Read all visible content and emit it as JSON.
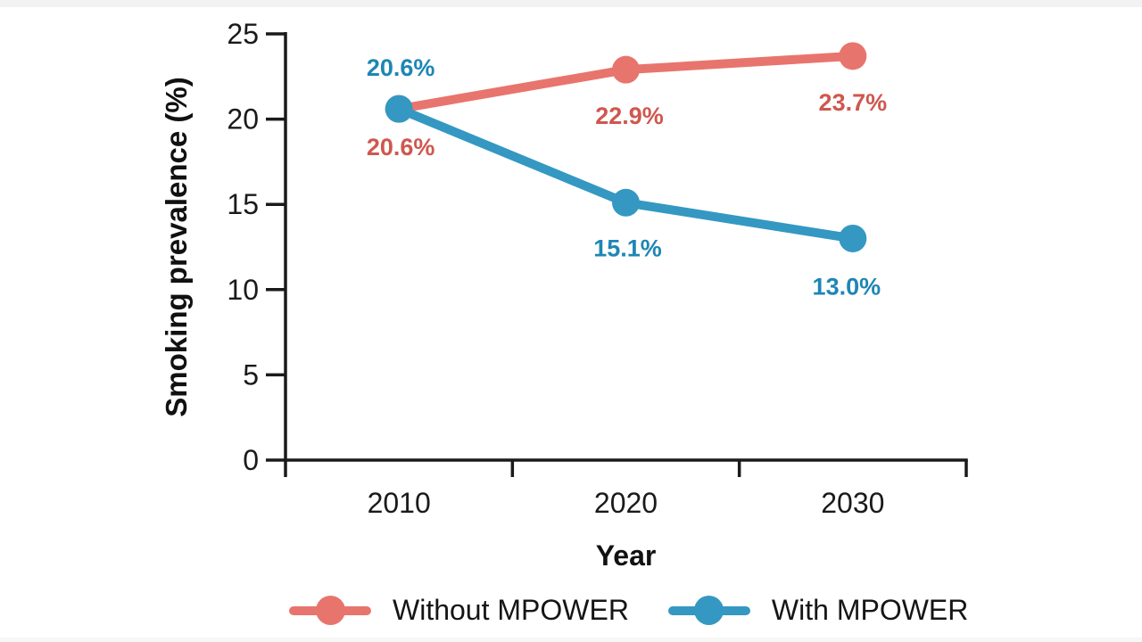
{
  "page": {
    "background": "#ffffff"
  },
  "chart_data": {
    "type": "line",
    "xlabel": "Year",
    "ylabel": "Smoking prevalence (%)",
    "categories": [
      "2010",
      "2020",
      "2030"
    ],
    "ylim": [
      0,
      25
    ],
    "yticks": [
      0,
      5,
      10,
      15,
      20,
      25
    ],
    "grid": false,
    "legend_position": "bottom",
    "axis_color": "#1a1a1a",
    "series": [
      {
        "name": "Without MPOWER",
        "color": "#e8756d",
        "label_color": "#cf574f",
        "values": [
          20.6,
          22.9,
          23.7
        ],
        "point_labels": [
          "20.6%",
          "22.9%",
          "23.7%"
        ],
        "point_label_offsets": [
          [
            2,
            43
          ],
          [
            4,
            52
          ],
          [
            0,
            52
          ]
        ]
      },
      {
        "name": "With MPOWER",
        "color": "#3498c2",
        "label_color": "#1e86b4",
        "values": [
          20.6,
          15.1,
          13.0
        ],
        "point_labels": [
          "20.6%",
          "15.1%",
          "13.0%"
        ],
        "point_label_offsets": [
          [
            2,
            -46
          ],
          [
            2,
            51
          ],
          [
            -7,
            54
          ]
        ]
      }
    ]
  }
}
